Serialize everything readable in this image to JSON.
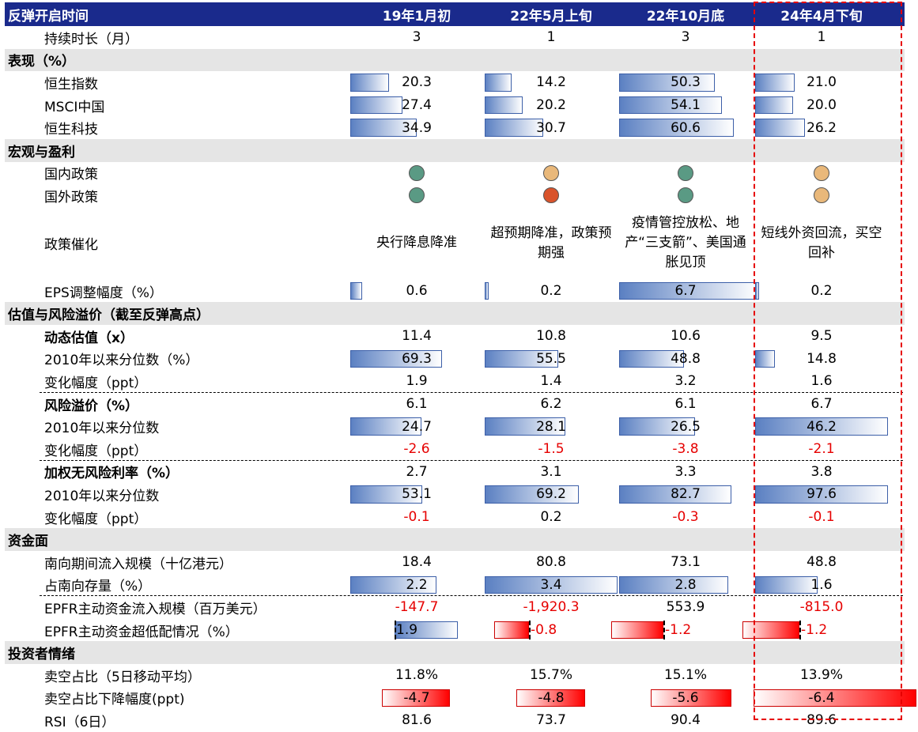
{
  "columns": [
    "19年1月初",
    "22年5月上旬",
    "22年10月底",
    "24年4月下旬"
  ],
  "header_label": "反弹开启时间",
  "colors": {
    "header_bg": "#1a2a8c",
    "section_bg": "#e5e5e5",
    "negative_text": "#e60000",
    "dot_green": "#5a9a84",
    "dot_amber": "#e9b87a",
    "dot_red": "#d9532b",
    "highlight_border": "#e60000"
  },
  "rows": [
    {
      "type": "data",
      "label": "持续时长（月）",
      "values": [
        "3",
        "1",
        "3",
        "1"
      ]
    },
    {
      "type": "section",
      "label": "表现（%）"
    },
    {
      "type": "data",
      "label": "恒生指数",
      "values": [
        "20.3",
        "14.2",
        "50.3",
        "21.0"
      ],
      "bar": [
        20.3,
        14.2,
        50.3,
        21.0
      ],
      "bar_max": 70
    },
    {
      "type": "data",
      "label": "MSCI中国",
      "values": [
        "27.4",
        "20.2",
        "54.1",
        "20.0"
      ],
      "bar": [
        27.4,
        20.2,
        54.1,
        20.0
      ],
      "bar_max": 70
    },
    {
      "type": "data",
      "label": "恒生科技",
      "values": [
        "34.9",
        "30.7",
        "60.6",
        "26.2"
      ],
      "bar": [
        34.9,
        30.7,
        60.6,
        26.2
      ],
      "bar_max": 70
    },
    {
      "type": "section",
      "label": "宏观与盈利"
    },
    {
      "type": "dots",
      "label": "国内政策",
      "dots": [
        "green",
        "amber",
        "green",
        "amber"
      ]
    },
    {
      "type": "dots",
      "label": "国外政策",
      "dots": [
        "green",
        "red",
        "green",
        "amber"
      ]
    },
    {
      "type": "text",
      "label": "政策催化",
      "values": [
        "央行降息降准",
        "超预期降准，政策预期强",
        "疫情管控放松、地产“三支箭”、美国通胀见顶",
        "短线外资回流，买空回补"
      ]
    },
    {
      "type": "data",
      "label": "EPS调整幅度（%）",
      "values": [
        "0.6",
        "0.2",
        "6.7",
        "0.2"
      ],
      "bar": [
        0.6,
        0.2,
        6.7,
        0.2
      ],
      "bar_max": 6.7,
      "extends_right": true
    },
    {
      "type": "section",
      "label": "估值与风险溢价（截至反弹高点）"
    },
    {
      "type": "data",
      "label": "动态估值（x）",
      "bold": true,
      "values": [
        "11.4",
        "10.8",
        "10.6",
        "9.5"
      ]
    },
    {
      "type": "data",
      "label": "2010年以来分位数（%）",
      "values": [
        "69.3",
        "55.5",
        "48.8",
        "14.8"
      ],
      "bar": [
        69.3,
        55.5,
        48.8,
        14.8
      ],
      "bar_max": 100
    },
    {
      "type": "data",
      "label": "变化幅度（ppt）",
      "values": [
        "1.9",
        "1.4",
        "3.2",
        "1.6"
      ],
      "divider_after": true
    },
    {
      "type": "data",
      "label": "风险溢价（%）",
      "bold": true,
      "values": [
        "6.1",
        "6.2",
        "6.1",
        "6.7"
      ]
    },
    {
      "type": "data",
      "label": "2010年以来分位数",
      "values": [
        "24.7",
        "28.1",
        "26.5",
        "46.2"
      ],
      "bar": [
        24.7,
        28.1,
        26.5,
        46.2
      ],
      "bar_max": 46.2
    },
    {
      "type": "data",
      "label": "变化幅度（ppt）",
      "values": [
        "-2.6",
        "-1.5",
        "-3.8",
        "-2.1"
      ],
      "negative": [
        true,
        true,
        true,
        true
      ],
      "divider_after": true
    },
    {
      "type": "data",
      "label": "加权无风险利率（%）",
      "bold": true,
      "values": [
        "2.7",
        "3.1",
        "3.3",
        "3.8"
      ]
    },
    {
      "type": "data",
      "label": "2010年以来分位数",
      "values": [
        "53.1",
        "69.2",
        "82.7",
        "97.6"
      ],
      "bar": [
        53.1,
        69.2,
        82.7,
        97.6
      ],
      "bar_max": 97.6
    },
    {
      "type": "data",
      "label": "变化幅度（ppt）",
      "values": [
        "-0.1",
        "0.2",
        "-0.3",
        "-0.1"
      ],
      "negative": [
        true,
        false,
        true,
        true
      ]
    },
    {
      "type": "section",
      "label": "资金面"
    },
    {
      "type": "data",
      "label": "南向期间流入规模（十亿港元）",
      "values": [
        "18.4",
        "80.8",
        "73.1",
        "48.8"
      ]
    },
    {
      "type": "data",
      "label": "占南向存量（%）",
      "values": [
        "2.2",
        "3.4",
        "2.8",
        "1.6"
      ],
      "bar": [
        2.2,
        3.4,
        2.8,
        1.6
      ],
      "bar_max": 3.4,
      "divider_after": true
    },
    {
      "type": "data",
      "label": "EPFR主动资金流入规模（百万美元）",
      "values": [
        "-147.7",
        "-1,920.3",
        "553.9",
        "-815.0"
      ],
      "negative": [
        true,
        true,
        false,
        true
      ]
    },
    {
      "type": "diverging",
      "label": "EPFR主动资金超低配情况（%）",
      "values": [
        "1.9",
        "-0.8",
        "-1.2",
        "-1.2"
      ],
      "bar": [
        1.9,
        -0.8,
        -1.2,
        -1.2
      ]
    },
    {
      "type": "section",
      "label": "投资者情绪"
    },
    {
      "type": "data",
      "label": "卖空占比（5日移动平均）",
      "values": [
        "11.8%",
        "15.7%",
        "15.1%",
        "13.9%"
      ]
    },
    {
      "type": "negbar",
      "label": "卖空占比下降幅度(ppt)",
      "values": [
        "-4.7",
        "-4.8",
        "-5.6",
        "-6.4"
      ],
      "bar": [
        -4.7,
        -4.8,
        -5.6,
        -6.4
      ],
      "bar_max": 6.4
    },
    {
      "type": "data",
      "label": "RSI（6日）",
      "values": [
        "81.6",
        "73.7",
        "90.4",
        "89.6"
      ]
    }
  ]
}
